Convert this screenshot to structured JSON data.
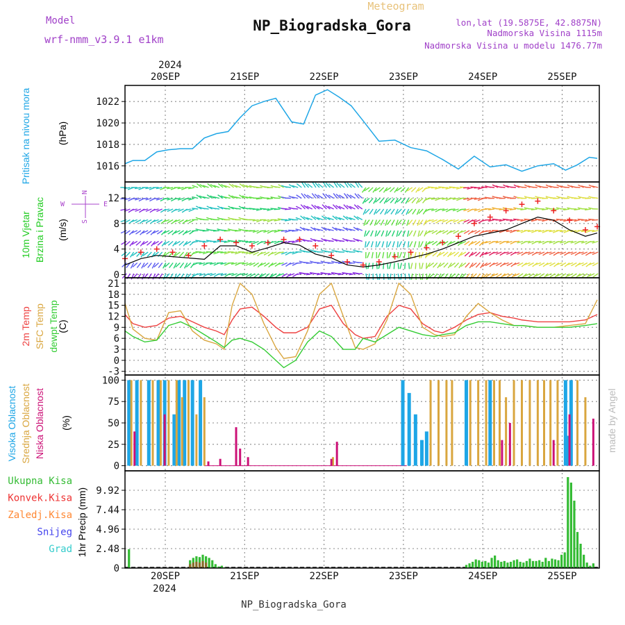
{
  "header": {
    "meteogram_label": "Meteogram",
    "station_title": "NP_Biogradska_Gora",
    "model_label": "Model",
    "model_name": "wrf-nmm_v3.9.1 e1km",
    "lonlat": "lon,lat (19.5875E, 42.8875N)",
    "altitude": "Nadmorska Visina 1115m",
    "model_altitude": "Nadmorska Visina u modelu 1476.77m",
    "footer_title": "NP_Biogradska_Gora",
    "credit": "made by Angel"
  },
  "time_axis": {
    "year": "2024",
    "day_labels": [
      "20SEP",
      "21SEP",
      "22SEP",
      "23SEP",
      "24SEP",
      "25SEP"
    ]
  },
  "colors": {
    "pressure": "#1ea6e6",
    "temp2m": "#ee4040",
    "sfc_temp": "#d9a63f",
    "dewpoint": "#33cc33",
    "high_cloud": "#1ea6e6",
    "mid_cloud": "#d9a63f",
    "low_cloud": "#cc1177",
    "total_precip": "#33bb33",
    "conv_precip": "#ee3333",
    "frozen_precip": "#ff8833",
    "snow": "#4444ee",
    "graupel": "#33cccc",
    "wind_label": "#22cc22",
    "wind_dir": "#aa44cc"
  },
  "chart_data": [
    {
      "type": "line",
      "panel": "pressure",
      "ylabel": "Pritisak na nivou mora",
      "unit": "(hPa)",
      "yticks": [
        "1016",
        "1018",
        "1020",
        "1022"
      ],
      "ylim": [
        1014.5,
        1023.5
      ],
      "x_days": [
        0,
        0.1,
        0.25,
        0.4,
        0.55,
        0.7,
        0.85,
        1.0,
        1.15,
        1.3,
        1.45,
        1.6,
        1.75,
        1.9,
        2.0,
        2.1,
        2.25,
        2.4,
        2.55,
        2.7,
        2.85,
        3.0,
        3.2,
        3.4,
        3.6,
        3.8,
        4.0,
        4.2,
        4.4,
        4.6,
        4.8,
        5.0,
        5.2,
        5.4,
        5.55,
        5.7,
        5.85,
        5.95
      ],
      "series": [
        {
          "name": "Pritisak na nivou mora",
          "values": [
            1016.2,
            1016.5,
            1016.5,
            1017.3,
            1017.5,
            1017.6,
            1017.6,
            1018.6,
            1019.0,
            1019.2,
            1020.5,
            1021.6,
            1022.0,
            1022.3,
            1021.2,
            1020.1,
            1019.9,
            1022.6,
            1023.1,
            1022.4,
            1021.6,
            1020.2,
            1018.3,
            1018.4,
            1017.7,
            1017.4,
            1016.6,
            1015.7,
            1016.9,
            1015.9,
            1016.1,
            1015.5,
            1016.0,
            1016.2,
            1015.6,
            1016.1,
            1016.8,
            1016.7
          ]
        }
      ]
    },
    {
      "type": "line",
      "panel": "wind",
      "ylabel": "10m Vjetar Brzina i Pravac",
      "unit": "(m/s)",
      "compass": [
        "N",
        "S",
        "W",
        "E"
      ],
      "yticks": [
        "0",
        "4",
        "8",
        "12"
      ],
      "ylim": [
        -0.5,
        14.5
      ],
      "x_days": [
        0,
        0.2,
        0.4,
        0.6,
        0.8,
        1.0,
        1.2,
        1.4,
        1.6,
        1.8,
        2.0,
        2.2,
        2.4,
        2.6,
        2.8,
        3.0,
        3.2,
        3.4,
        3.6,
        3.8,
        4.0,
        4.2,
        4.4,
        4.6,
        4.8,
        5.0,
        5.2,
        5.4,
        5.6,
        5.8,
        5.95
      ],
      "series": [
        {
          "name": "10m speed",
          "values": [
            1.5,
            2.5,
            3.0,
            2.8,
            2.6,
            2.4,
            4.5,
            4.5,
            3.5,
            4.2,
            5.0,
            4.6,
            3.2,
            2.6,
            1.5,
            1.2,
            1.5,
            2.0,
            2.6,
            3.2,
            4.0,
            5.0,
            6.0,
            6.5,
            7.0,
            8.0,
            9.0,
            8.5,
            7.0,
            6.0,
            6.5
          ]
        },
        {
          "name": "gust",
          "values": [
            2.5,
            3.5,
            4.0,
            3.5,
            3.0,
            4.5,
            5.5,
            5.0,
            4.5,
            5.0,
            5.5,
            5.5,
            4.5,
            3.0,
            2.0,
            1.5,
            2.0,
            2.8,
            3.5,
            4.2,
            5.0,
            6.0,
            8.0,
            9.0,
            10.0,
            11.0,
            11.5,
            10.0,
            8.5,
            7.0,
            7.5
          ]
        }
      ]
    },
    {
      "type": "line",
      "panel": "temperature",
      "series_labels": [
        "2m Temp",
        "SFC Temp",
        "dewpt Temp"
      ],
      "unit": "(C)",
      "yticks": [
        "-3",
        "0",
        "3",
        "6",
        "9",
        "12",
        "15",
        "18",
        "21"
      ],
      "ylim": [
        -4,
        22.5
      ],
      "x_days": [
        0,
        0.1,
        0.25,
        0.4,
        0.55,
        0.7,
        0.85,
        1.0,
        1.15,
        1.25,
        1.35,
        1.45,
        1.6,
        1.75,
        1.9,
        2.0,
        2.15,
        2.3,
        2.45,
        2.6,
        2.75,
        2.9,
        3.0,
        3.15,
        3.3,
        3.45,
        3.6,
        3.75,
        3.9,
        4.0,
        4.15,
        4.3,
        4.45,
        4.6,
        4.75,
        4.9,
        5.0,
        5.2,
        5.4,
        5.6,
        5.8,
        5.95
      ],
      "series": [
        {
          "name": "2m Temp",
          "values": [
            12.5,
            10.0,
            9.0,
            9.5,
            11.5,
            12.0,
            10.5,
            9.0,
            8.0,
            7.0,
            11.0,
            14.0,
            14.5,
            12.0,
            9.0,
            7.5,
            7.5,
            9.0,
            14.0,
            15.0,
            10.0,
            7.0,
            6.0,
            6.5,
            12.0,
            15.0,
            14.0,
            10.0,
            8.0,
            7.5,
            9.0,
            11.0,
            12.5,
            13.0,
            12.0,
            11.5,
            11.0,
            10.5,
            10.5,
            10.5,
            11.0,
            12.5
          ]
        },
        {
          "name": "SFC Temp",
          "values": [
            15.5,
            8.5,
            6.0,
            5.5,
            13.0,
            13.5,
            8.0,
            5.5,
            4.5,
            3.0,
            15.0,
            21.0,
            18.0,
            10.0,
            3.5,
            0.5,
            1.0,
            8.0,
            18.0,
            21.0,
            12.0,
            3.5,
            3.0,
            4.5,
            11.0,
            21.0,
            18.0,
            9.0,
            7.0,
            6.5,
            7.0,
            12.0,
            15.5,
            13.0,
            11.0,
            9.5,
            9.5,
            9.0,
            9.0,
            9.5,
            10.0,
            16.5
          ]
        },
        {
          "name": "dewpt Temp",
          "values": [
            8.0,
            6.5,
            5.0,
            5.5,
            9.5,
            10.5,
            9.0,
            7.0,
            5.0,
            3.5,
            5.5,
            6.0,
            5.0,
            3.0,
            0.0,
            -2.0,
            0.0,
            5.0,
            8.0,
            6.5,
            3.0,
            3.0,
            6.0,
            5.0,
            7.0,
            9.0,
            8.0,
            7.0,
            6.5,
            7.0,
            7.5,
            9.5,
            10.5,
            10.5,
            10.0,
            9.5,
            9.5,
            9.0,
            9.0,
            9.0,
            9.5,
            10.0
          ]
        }
      ]
    },
    {
      "type": "bar",
      "panel": "clouds",
      "series_labels": [
        "Visoka Oblacnost",
        "Srednja Oblacnost",
        "Niska Oblacnost"
      ],
      "unit": "(%)",
      "yticks": [
        "0",
        "25",
        "50",
        "75",
        "100"
      ],
      "ylim": [
        -6,
        106
      ],
      "bar_width_days": 0.02,
      "series": [
        {
          "name": "Visoka Oblacnost",
          "x_days": [
            0.05,
            0.15,
            0.3,
            0.42,
            0.5,
            0.62,
            0.68,
            0.75,
            0.85,
            0.95,
            3.5,
            3.58,
            3.66,
            3.74,
            3.8,
            4.3,
            4.6,
            5.55,
            5.58,
            5.62
          ],
          "values": [
            100,
            100,
            100,
            100,
            100,
            60,
            100,
            100,
            100,
            100,
            100,
            85,
            60,
            30,
            40,
            100,
            100,
            100,
            35,
            100
          ]
        },
        {
          "name": "Srednja Oblacnost",
          "x_days": [
            0.08,
            0.2,
            0.35,
            0.45,
            0.55,
            0.65,
            0.72,
            0.8,
            0.9,
            1.0,
            2.62,
            3.85,
            3.95,
            4.05,
            4.12,
            4.35,
            4.45,
            4.55,
            4.65,
            4.72,
            4.8,
            4.9,
            5.0,
            5.1,
            5.2,
            5.28,
            5.36,
            5.45,
            5.7,
            5.8
          ],
          "values": [
            100,
            100,
            100,
            100,
            100,
            100,
            80,
            100,
            60,
            80,
            10,
            100,
            100,
            100,
            100,
            100,
            100,
            100,
            100,
            100,
            80,
            100,
            100,
            100,
            100,
            100,
            100,
            100,
            100,
            80
          ]
        },
        {
          "name": "Niska Oblacnost",
          "x_days": [
            0.12,
            0.5,
            1.05,
            1.2,
            1.4,
            1.45,
            1.55,
            2.6,
            2.67,
            4.75,
            4.85,
            5.4,
            5.6,
            5.9
          ],
          "values": [
            40,
            60,
            5,
            8,
            45,
            20,
            10,
            8,
            28,
            30,
            50,
            30,
            60,
            55
          ]
        }
      ]
    },
    {
      "type": "bar",
      "panel": "precipitation",
      "series_labels": [
        "Ukupna Kisa",
        "Konvek.Kisa",
        "Zaledj.Kisa",
        "Snijeg",
        "Grad"
      ],
      "ylabel": "1hr Precip (mm)",
      "yticks": [
        "0",
        "2.48",
        "4.96",
        "7.44",
        "9.92"
      ],
      "ylim": [
        0,
        12.4
      ],
      "bar_width_days": 0.025,
      "series": [
        {
          "name": "Ukupna Kisa",
          "x_days": [
            0.05,
            0.82,
            0.86,
            0.9,
            0.94,
            0.98,
            1.02,
            1.06,
            1.1,
            1.14,
            1.18,
            1.22,
            1.26,
            4.3,
            4.34,
            4.38,
            4.42,
            4.46,
            4.5,
            4.54,
            4.58,
            4.62,
            4.66,
            4.7,
            4.74,
            4.78,
            4.82,
            4.86,
            4.9,
            4.94,
            4.98,
            5.02,
            5.06,
            5.1,
            5.14,
            5.18,
            5.22,
            5.26,
            5.3,
            5.34,
            5.38,
            5.42,
            5.46,
            5.5,
            5.54,
            5.58,
            5.62,
            5.66,
            5.7,
            5.74,
            5.78,
            5.82,
            5.86,
            5.9
          ],
          "values": [
            2.4,
            1.0,
            1.3,
            1.5,
            1.4,
            1.7,
            1.5,
            1.3,
            1.0,
            0.5,
            0.2,
            0.3,
            0.1,
            0.4,
            0.6,
            0.8,
            1.1,
            1.0,
            0.8,
            0.9,
            0.7,
            1.3,
            1.6,
            1.0,
            0.8,
            0.9,
            0.7,
            0.8,
            1.0,
            1.1,
            0.8,
            0.7,
            0.9,
            1.2,
            0.9,
            0.9,
            1.0,
            0.8,
            1.3,
            0.9,
            1.2,
            1.1,
            1.0,
            1.7,
            2.0,
            11.6,
            10.9,
            8.6,
            4.6,
            3.1,
            1.7,
            0.7,
            0.3,
            0.6
          ]
        },
        {
          "name": "Konvek.Kisa",
          "x_days": [
            0.82,
            0.86,
            0.9,
            0.94,
            0.98,
            1.02
          ],
          "values": [
            0.5,
            0.7,
            0.8,
            0.7,
            0.9,
            0.7
          ]
        }
      ]
    }
  ]
}
